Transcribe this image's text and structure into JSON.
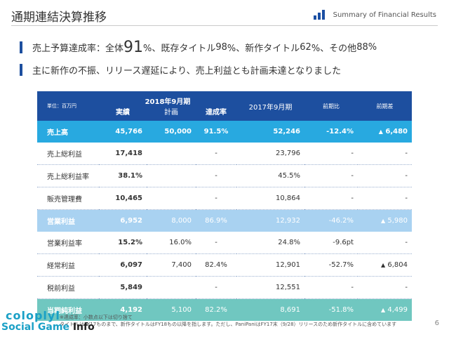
{
  "header": {
    "title": "通期連結決算推移",
    "summary_label": "Summary of Financial Results",
    "summary_icon": "bar-chart-icon",
    "accent_color": "#1d4f9f"
  },
  "bullets": [
    {
      "prefix": "売上予算達成率：全体",
      "total_value": "91",
      "seg1": "%、既存タイトル",
      "existing_value": "98",
      "seg2": "%、新作タイトル",
      "new_value": "62",
      "seg3": "%、その他",
      "other_value": "88",
      "suffix": "%"
    },
    {
      "text": "主に新作の不振、リリース遅延により、売上利益とも計画未達となりました"
    }
  ],
  "table": {
    "unit": "単位：百万円",
    "fy2018_label": "2018年9月期",
    "actual_label": "実績",
    "plan_label": "計画",
    "achievement_label": "達成率",
    "fy2017_label": "2017年9月期",
    "yoy_label": "前期比",
    "diff_label": "前期差",
    "rows": [
      {
        "label": "売上高",
        "actual": "45,766",
        "plan": "50,000",
        "achievement": "91.5%",
        "prior": "52,246",
        "yoy": "-12.4%",
        "diff": "6,480",
        "diff_arrow": "▲"
      },
      {
        "label": "売上総利益",
        "actual": "17,418",
        "plan": "",
        "achievement": "-",
        "prior": "23,796",
        "yoy": "-",
        "diff": "-",
        "diff_arrow": ""
      },
      {
        "label": "売上総利益率",
        "actual": "38.1%",
        "plan": "",
        "achievement": "-",
        "prior": "45.5%",
        "yoy": "-",
        "diff": "-",
        "diff_arrow": ""
      },
      {
        "label": "販売管理費",
        "actual": "10,465",
        "plan": "",
        "achievement": "-",
        "prior": "10,864",
        "yoy": "-",
        "diff": "-",
        "diff_arrow": ""
      },
      {
        "label": "営業利益",
        "actual": "6,952",
        "plan": "8,000",
        "achievement": "86.9%",
        "prior": "12,932",
        "yoy": "-46.2%",
        "diff": "5,980",
        "diff_arrow": "▲"
      },
      {
        "label": "営業利益率",
        "actual": "15.2%",
        "plan": "16.0%",
        "achievement": "-",
        "prior": "24.8%",
        "yoy": "-9.6pt",
        "diff": "-",
        "diff_arrow": ""
      },
      {
        "label": "経常利益",
        "actual": "6,097",
        "plan": "7,400",
        "achievement": "82.4%",
        "prior": "12,901",
        "yoy": "-52.7%",
        "diff": "6,804",
        "diff_arrow": "▲"
      },
      {
        "label": "税前利益",
        "actual": "5,849",
        "plan": "",
        "achievement": "-",
        "prior": "12,551",
        "yoy": "-",
        "diff": "-",
        "diff_arrow": ""
      },
      {
        "label": "当期純利益",
        "actual": "4,192",
        "plan": "5,100",
        "achievement": "82.2%",
        "prior": "8,691",
        "yoy": "-51.8%",
        "diff": "4,499",
        "diff_arrow": "▲"
      }
    ]
  },
  "footnotes": [
    "※達成率：小数点以下は切り捨て",
    "タイトルはFY17ものまで、新作タイトルはFY18もの以降を指します。ただし、PaniPaniはFY17末（9/28）リリースのため新作タイトルに含めています"
  ],
  "page_number": "6",
  "watermark": {
    "top": "coloplyl",
    "bottom_prefix": "Social Game ",
    "bottom_bold": "Info"
  }
}
